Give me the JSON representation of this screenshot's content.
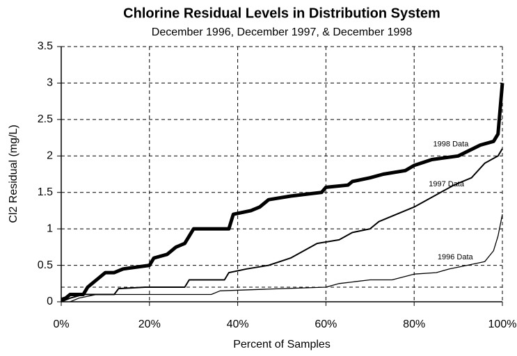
{
  "chart_data": {
    "type": "line",
    "title": "Chlorine Residual Levels in Distribution System",
    "subtitle": "December 1996, December 1997, & December 1998",
    "x_label": "Percent of Samples",
    "y_label": "Cl2 Residual (mg/L)",
    "xlim": [
      0,
      100
    ],
    "ylim": [
      0,
      3.5
    ],
    "xticks": [
      {
        "value": 0,
        "label": "0%"
      },
      {
        "value": 20,
        "label": "20%"
      },
      {
        "value": 40,
        "label": "40%"
      },
      {
        "value": 60,
        "label": "60%"
      },
      {
        "value": 80,
        "label": "80%"
      },
      {
        "value": 100,
        "label": "100%"
      }
    ],
    "yticks": [
      0,
      0.5,
      1,
      1.5,
      2,
      2.5,
      3,
      3.5
    ],
    "grid": true,
    "reference_lines": [
      0.2
    ],
    "series": [
      {
        "name": "1998 Data",
        "color": "#000000",
        "line_width": 5,
        "x": [
          0,
          1,
          2,
          5,
          6,
          8,
          10,
          12,
          14,
          20,
          21,
          24,
          26,
          28,
          29,
          30,
          38,
          39,
          43,
          45,
          47,
          52,
          59,
          60,
          65,
          66,
          70,
          73,
          78,
          80,
          84,
          90,
          95,
          98,
          99,
          100
        ],
        "values": [
          0.03,
          0.05,
          0.1,
          0.1,
          0.2,
          0.3,
          0.4,
          0.4,
          0.45,
          0.5,
          0.6,
          0.65,
          0.75,
          0.8,
          0.9,
          1.0,
          1.0,
          1.2,
          1.25,
          1.3,
          1.4,
          1.45,
          1.5,
          1.57,
          1.6,
          1.65,
          1.7,
          1.75,
          1.8,
          1.87,
          1.95,
          2.0,
          2.15,
          2.2,
          2.3,
          3.0
        ]
      },
      {
        "name": "1997 Data",
        "color": "#000000",
        "line_width": 2,
        "x": [
          0,
          2,
          5,
          12,
          13,
          19,
          28,
          29,
          37,
          38,
          42,
          47,
          52,
          55,
          58,
          63,
          66,
          70,
          72,
          76,
          80,
          83,
          86,
          89,
          93,
          96,
          99,
          100
        ],
        "values": [
          0.0,
          0.05,
          0.1,
          0.1,
          0.18,
          0.2,
          0.2,
          0.3,
          0.3,
          0.4,
          0.45,
          0.5,
          0.6,
          0.7,
          0.8,
          0.85,
          0.95,
          1.0,
          1.1,
          1.2,
          1.3,
          1.4,
          1.5,
          1.6,
          1.7,
          1.9,
          2.0,
          2.1
        ]
      },
      {
        "name": "1996 Data",
        "color": "#000000",
        "line_width": 1.3,
        "x": [
          2,
          4,
          8,
          34,
          36,
          50,
          60,
          63,
          70,
          75,
          80,
          85,
          88,
          92,
          96,
          98,
          99,
          100
        ],
        "values": [
          0.0,
          0.05,
          0.1,
          0.1,
          0.15,
          0.18,
          0.2,
          0.25,
          0.3,
          0.3,
          0.38,
          0.4,
          0.45,
          0.5,
          0.55,
          0.7,
          0.9,
          1.2
        ]
      }
    ]
  }
}
